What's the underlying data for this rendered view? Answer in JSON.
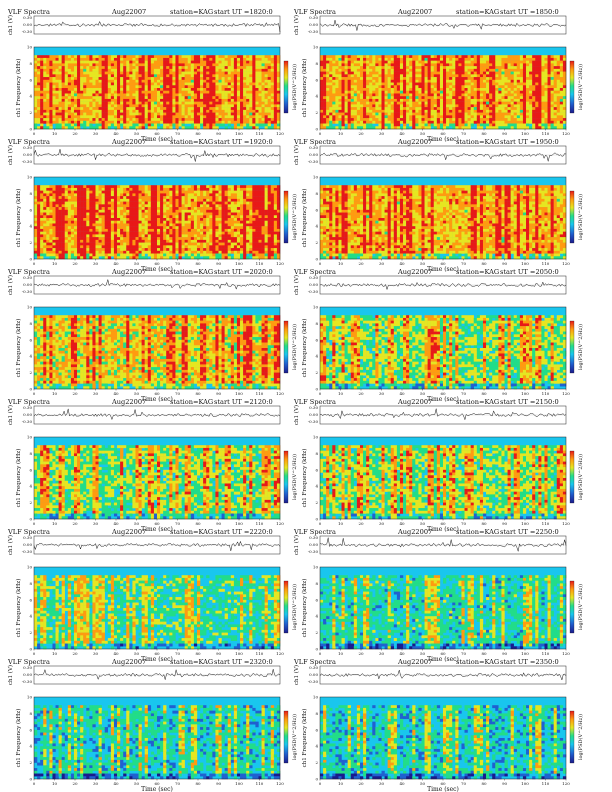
{
  "header": {
    "label": "VLF Spectra",
    "date": "Aug22007",
    "station": "station=KAG",
    "start_prefix": "start  UT  ="
  },
  "axes": {
    "ch_label": "ch1 (V)",
    "freq_label": "ch1 Frequency (kHz)",
    "time_label": "Time  (sec)",
    "colorbar_label": "log(PSD(V^2/Hz))",
    "ch_ticks": [
      "0.30",
      "0.00",
      "-0.30"
    ],
    "freq_ticks": [
      "10",
      "8",
      "6",
      "4",
      "2",
      "0"
    ],
    "time_ticks": [
      "0",
      "10",
      "20",
      "30",
      "40",
      "50",
      "60",
      "70",
      "80",
      "90",
      "100",
      "110",
      "120"
    ]
  },
  "chart_data": [
    {
      "type": "heatmap",
      "start_ut": "1820:0",
      "xlim": [
        0,
        120
      ],
      "ylim": [
        0,
        10
      ],
      "activity": 0.85
    },
    {
      "type": "heatmap",
      "start_ut": "1850:0",
      "xlim": [
        0,
        120
      ],
      "ylim": [
        0,
        10
      ],
      "activity": 0.85
    },
    {
      "type": "heatmap",
      "start_ut": "1920:0",
      "xlim": [
        0,
        120
      ],
      "ylim": [
        0,
        10
      ],
      "activity": 0.9
    },
    {
      "type": "heatmap",
      "start_ut": "1950:0",
      "xlim": [
        0,
        120
      ],
      "ylim": [
        0,
        10
      ],
      "activity": 0.85
    },
    {
      "type": "heatmap",
      "start_ut": "2020:0",
      "xlim": [
        0,
        120
      ],
      "ylim": [
        0,
        10
      ],
      "activity": 0.75
    },
    {
      "type": "heatmap",
      "start_ut": "2050:0",
      "xlim": [
        0,
        120
      ],
      "ylim": [
        0,
        10
      ],
      "activity": 0.55
    },
    {
      "type": "heatmap",
      "start_ut": "2120:0",
      "xlim": [
        0,
        120
      ],
      "ylim": [
        0,
        10
      ],
      "activity": 0.55
    },
    {
      "type": "heatmap",
      "start_ut": "2150:0",
      "xlim": [
        0,
        120
      ],
      "ylim": [
        0,
        10
      ],
      "activity": 0.55
    },
    {
      "type": "heatmap",
      "start_ut": "2220:0",
      "xlim": [
        0,
        120
      ],
      "ylim": [
        0,
        10
      ],
      "activity": 0.4
    },
    {
      "type": "heatmap",
      "start_ut": "2250:0",
      "xlim": [
        0,
        120
      ],
      "ylim": [
        0,
        10
      ],
      "activity": 0.35
    },
    {
      "type": "heatmap",
      "start_ut": "2320:0",
      "xlim": [
        0,
        120
      ],
      "ylim": [
        0,
        10
      ],
      "activity": 0.3
    },
    {
      "type": "heatmap",
      "start_ut": "2350:0",
      "xlim": [
        0,
        120
      ],
      "ylim": [
        0,
        10
      ],
      "activity": 0.3
    }
  ],
  "colors": {
    "colormap": [
      "#1a1a8c",
      "#2060d0",
      "#19c6ee",
      "#22dd88",
      "#e6e621",
      "#ff9b10",
      "#e81818"
    ],
    "noise_band": "#19c6ee",
    "trace": "#111111"
  }
}
